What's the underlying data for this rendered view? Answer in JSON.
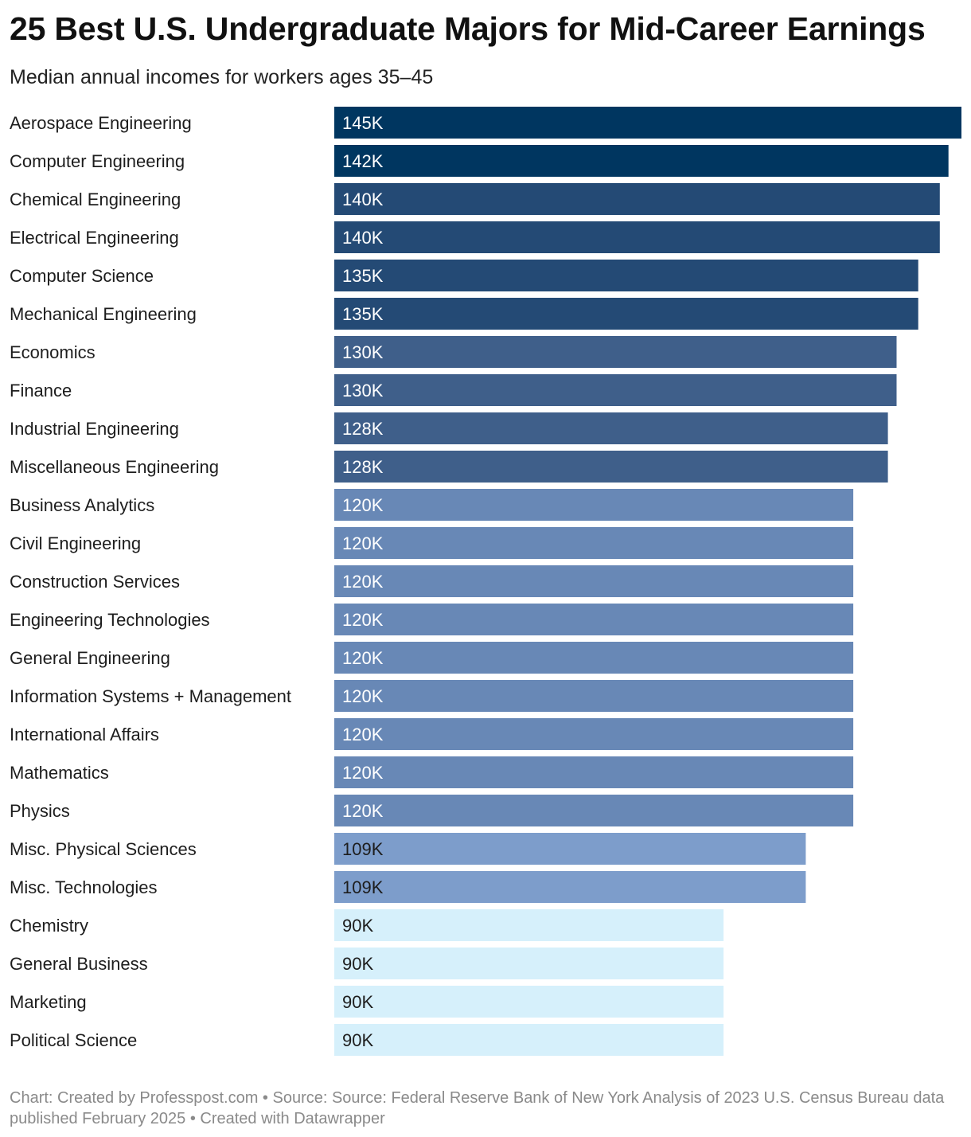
{
  "header": {
    "title": "25 Best U.S. Undergraduate Majors for Mid-Career Earnings",
    "subtitle": "Median annual incomes for workers ages 35–45"
  },
  "footer": {
    "chart_credit": "Chart: Created by Professpost.com ",
    "separator": " • ",
    "source": "Source: Source: Federal Reserve Bank of New York Analysis of 2023 U.S. Census Bureau data published February 2025",
    "tool": "Created with Datawrapper"
  },
  "colors": {
    "scale": [
      "#d6f0fb",
      "#b1d0f8",
      "#9fbdeb",
      "#7d9dcb",
      "#6888b6",
      "#52739d",
      "#3f5f8a",
      "#244a75",
      "#003660"
    ],
    "dark_label": "#1d1d1d",
    "light_label": "#ffffff"
  },
  "chart_data": {
    "type": "bar",
    "orientation": "horizontal",
    "title": "25 Best U.S. Undergraduate Majors for Mid-Career Earnings",
    "subtitle": "Median annual incomes for workers ages 35–45",
    "xlabel": "",
    "ylabel": "",
    "xlim": [
      0,
      145
    ],
    "grid": false,
    "value_suffix": "K",
    "categories": [
      "Aerospace Engineering",
      "Computer Engineering",
      "Chemical Engineering",
      "Electrical Engineering",
      "Computer Science",
      "Mechanical Engineering",
      "Economics",
      "Finance",
      "Industrial Engineering",
      "Miscellaneous Engineering",
      "Business Analytics",
      "Civil Engineering",
      "Construction Services",
      "Engineering Technologies",
      "General Engineering",
      "Information Systems + Management",
      "International Affairs",
      "Mathematics",
      "Physics",
      "Misc. Physical Sciences",
      "Misc. Technologies",
      "Chemistry",
      "General Business",
      "Marketing",
      "Political Science"
    ],
    "values": [
      145,
      142,
      140,
      140,
      135,
      135,
      130,
      130,
      128,
      128,
      120,
      120,
      120,
      120,
      120,
      120,
      120,
      120,
      120,
      109,
      109,
      90,
      90,
      90,
      90
    ],
    "value_labels": [
      "145K",
      "142K",
      "140K",
      "140K",
      "135K",
      "135K",
      "130K",
      "130K",
      "128K",
      "128K",
      "120K",
      "120K",
      "120K",
      "120K",
      "120K",
      "120K",
      "120K",
      "120K",
      "120K",
      "109K",
      "109K",
      "90K",
      "90K",
      "90K",
      "90K"
    ]
  }
}
